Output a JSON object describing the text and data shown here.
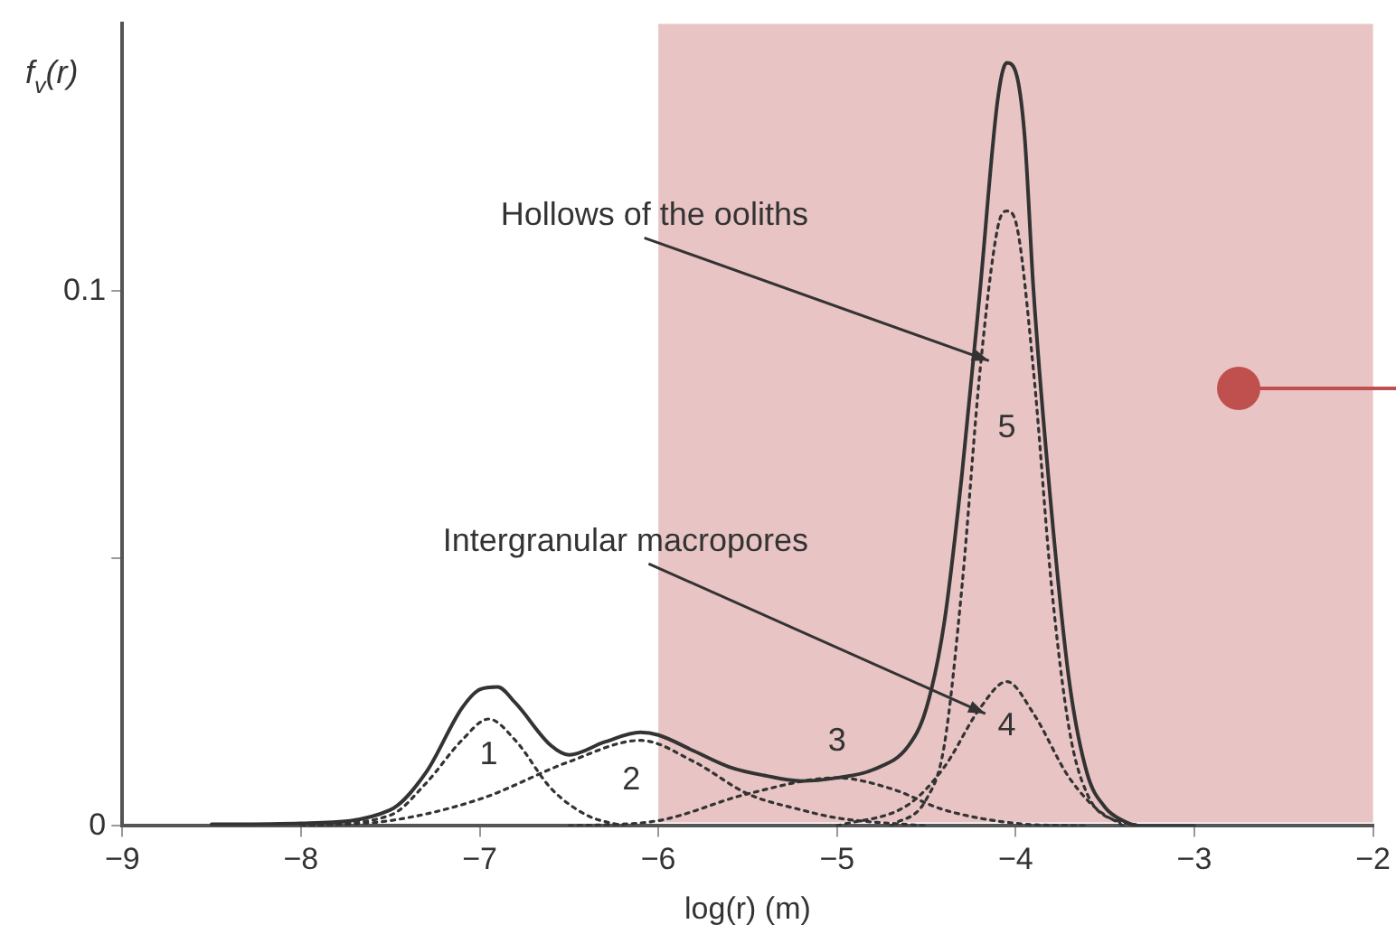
{
  "chart_data": {
    "type": "line",
    "xlabel": "log(r) (m)",
    "ylabel": "f$_{v}$(r)",
    "xlim": [
      -9,
      -2
    ],
    "xticks": [
      -9,
      -8,
      -7,
      -6,
      -5,
      -4,
      -3,
      -2
    ],
    "ylim": [
      0,
      0.15
    ],
    "yticks": [
      0,
      {
        "value": 0.05,
        "label": null
      },
      0.1
    ],
    "grid": false,
    "legend": false,
    "marker": "none",
    "bands": [
      {
        "axis": "x",
        "from": -6,
        "to": -2,
        "color": "#e8c4c4"
      }
    ],
    "annotations": [
      {
        "text": "Hollows of the ooliths",
        "x": -4.15,
        "y": 0.087
      },
      {
        "text": "Intergranular macropores",
        "x": -4.17,
        "y": 0.021
      }
    ],
    "series": [
      {
        "color": "#333333",
        "line_style": "solid",
        "x": [
          -8.5,
          -8,
          -7.5,
          -7.3,
          -7.1,
          -7,
          -6.9,
          -6.8,
          -6.6,
          -6.5,
          -6.3,
          -6.1,
          -6,
          -5.8,
          -5.6,
          -5.4,
          -5.2,
          -5,
          -4.8,
          -4.6,
          -4.5,
          -4.4,
          -4.3,
          -4.2,
          -4.1,
          -4.05,
          -4,
          -3.95,
          -3.9,
          -3.8,
          -3.7,
          -3.6,
          -3.5,
          -3.4,
          -3.3,
          -3
        ],
        "values": [
          0.0003,
          0.0005,
          0.003,
          0.01,
          0.022,
          0.0255,
          0.026,
          0.023,
          0.015,
          0.0133,
          0.0157,
          0.0175,
          0.017,
          0.014,
          0.011,
          0.0094,
          0.0084,
          0.009,
          0.0105,
          0.015,
          0.022,
          0.038,
          0.066,
          0.1,
          0.136,
          0.1427,
          0.141,
          0.129,
          0.1,
          0.059,
          0.027,
          0.0098,
          0.0035,
          0.001,
          0,
          0
        ]
      },
      {
        "name": "1",
        "color": "#333333",
        "line_style": "dotted",
        "x": [
          -8,
          -7.5,
          -7.3,
          -7.1,
          -6.95,
          -6.8,
          -6.6,
          -6.4,
          -6.2
        ],
        "values": [
          0,
          0.002,
          0.008,
          0.016,
          0.02,
          0.016,
          0.007,
          0.002,
          0
        ]
      },
      {
        "name": "2",
        "color": "#333333",
        "line_style": "dotted",
        "x": [
          -8,
          -7.5,
          -7,
          -6.5,
          -6.1,
          -5.8,
          -5.5,
          -5.2,
          -5,
          -4.5
        ],
        "values": [
          0,
          0.001,
          0.005,
          0.012,
          0.016,
          0.012,
          0.006,
          0.003,
          0.0015,
          0
        ]
      },
      {
        "name": "3",
        "color": "#333333",
        "line_style": "dotted",
        "x": [
          -6.5,
          -6,
          -5.5,
          -5,
          -4.7,
          -4.4,
          -4,
          -3.6
        ],
        "values": [
          0,
          0.001,
          0.006,
          0.009,
          0.007,
          0.003,
          0.0005,
          0
        ]
      },
      {
        "name": "4",
        "color": "#333333",
        "line_style": "dotted",
        "x": [
          -5,
          -4.6,
          -4.4,
          -4.2,
          -4.05,
          -3.9,
          -3.7,
          -3.5,
          -3.3
        ],
        "values": [
          0,
          0.004,
          0.011,
          0.022,
          0.027,
          0.021,
          0.009,
          0.002,
          0
        ]
      },
      {
        "name": "5",
        "color": "#333333",
        "line_style": "dotted",
        "x": [
          -4.7,
          -4.5,
          -4.4,
          -4.3,
          -4.2,
          -4.1,
          -4.05,
          -4,
          -3.9,
          -3.8,
          -3.7,
          -3.6,
          -3.4
        ],
        "values": [
          0,
          0.005,
          0.015,
          0.045,
          0.085,
          0.112,
          0.115,
          0.113,
          0.085,
          0.045,
          0.018,
          0.006,
          0
        ]
      }
    ]
  }
}
